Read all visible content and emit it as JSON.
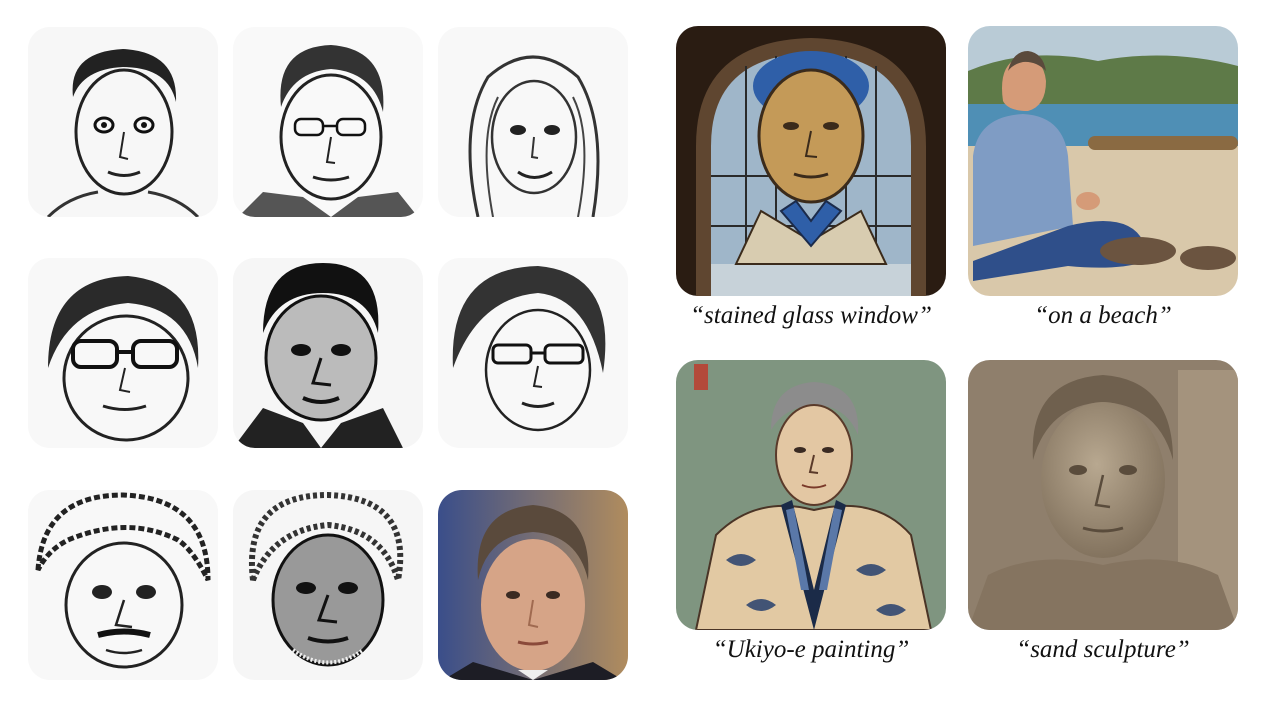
{
  "grid": {
    "items": [
      {
        "kind": "sketch"
      },
      {
        "kind": "sketch"
      },
      {
        "kind": "sketch"
      },
      {
        "kind": "sketch"
      },
      {
        "kind": "sketch"
      },
      {
        "kind": "sketch"
      },
      {
        "kind": "sketch"
      },
      {
        "kind": "sketch"
      },
      {
        "kind": "photo"
      }
    ]
  },
  "results": [
    {
      "caption": "“stained glass window”"
    },
    {
      "caption": "“on a beach”"
    },
    {
      "caption": "“Ukiyo-e painting”"
    },
    {
      "caption": "“sand sculpture”"
    }
  ],
  "colors": {
    "glass_blue": "#2f5fa8",
    "sea": "#4f8fb5",
    "sand": "#d9c8aa",
    "ukiyo_bg": "#7f9580",
    "sculpture": "#9a8a76"
  }
}
